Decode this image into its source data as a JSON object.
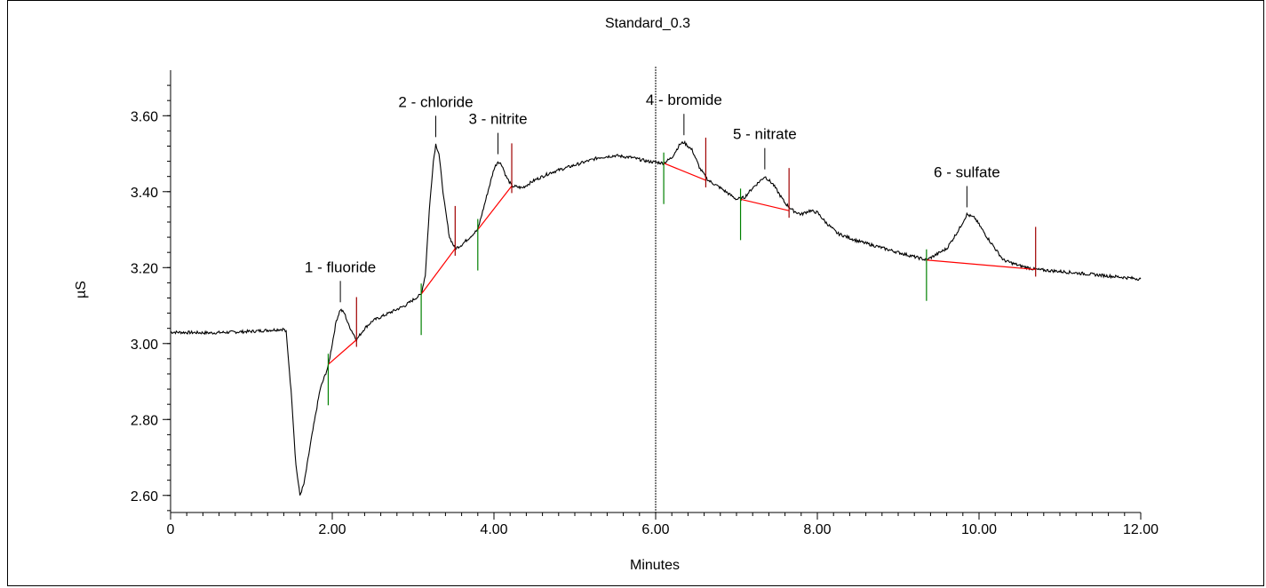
{
  "chart_data": {
    "type": "line",
    "title": "Standard_0.3",
    "xlabel": "Minutes",
    "ylabel": "µS",
    "xlim": [
      0,
      12
    ],
    "ylim": [
      2.555,
      3.72
    ],
    "x_ticks": [
      0,
      2,
      4,
      6,
      8,
      10,
      12
    ],
    "x_tick_labels": [
      "0",
      "2.00",
      "4.00",
      "6.00",
      "8.00",
      "10.00",
      "12.00"
    ],
    "y_ticks": [
      2.6,
      2.8,
      3.0,
      3.2,
      3.4,
      3.6
    ],
    "y_tick_labels": [
      "2.60",
      "2.80",
      "3.00",
      "3.20",
      "3.40",
      "3.60"
    ],
    "grid": false,
    "cursor_x": 6.0,
    "trace": [
      [
        0.0,
        3.03
      ],
      [
        0.5,
        3.028
      ],
      [
        1.0,
        3.032
      ],
      [
        1.4,
        3.038
      ],
      [
        1.43,
        3.03
      ],
      [
        1.5,
        2.85
      ],
      [
        1.55,
        2.68
      ],
      [
        1.6,
        2.6
      ],
      [
        1.65,
        2.63
      ],
      [
        1.75,
        2.76
      ],
      [
        1.85,
        2.88
      ],
      [
        1.95,
        2.94
      ],
      [
        2.05,
        3.06
      ],
      [
        2.1,
        3.09
      ],
      [
        2.15,
        3.08
      ],
      [
        2.2,
        3.05
      ],
      [
        2.3,
        3.01
      ],
      [
        2.4,
        3.04
      ],
      [
        2.5,
        3.06
      ],
      [
        2.7,
        3.08
      ],
      [
        2.9,
        3.1
      ],
      [
        3.1,
        3.13
      ],
      [
        3.15,
        3.18
      ],
      [
        3.2,
        3.35
      ],
      [
        3.25,
        3.48
      ],
      [
        3.28,
        3.525
      ],
      [
        3.32,
        3.5
      ],
      [
        3.38,
        3.38
      ],
      [
        3.45,
        3.28
      ],
      [
        3.52,
        3.25
      ],
      [
        3.6,
        3.26
      ],
      [
        3.7,
        3.28
      ],
      [
        3.8,
        3.3
      ],
      [
        3.9,
        3.38
      ],
      [
        4.0,
        3.46
      ],
      [
        4.05,
        3.48
      ],
      [
        4.1,
        3.47
      ],
      [
        4.15,
        3.44
      ],
      [
        4.22,
        3.415
      ],
      [
        4.35,
        3.41
      ],
      [
        4.5,
        3.43
      ],
      [
        4.7,
        3.45
      ],
      [
        5.0,
        3.47
      ],
      [
        5.3,
        3.49
      ],
      [
        5.5,
        3.495
      ],
      [
        5.7,
        3.49
      ],
      [
        5.9,
        3.48
      ],
      [
        6.1,
        3.475
      ],
      [
        6.2,
        3.49
      ],
      [
        6.3,
        3.525
      ],
      [
        6.35,
        3.53
      ],
      [
        6.45,
        3.51
      ],
      [
        6.55,
        3.46
      ],
      [
        6.65,
        3.43
      ],
      [
        6.8,
        3.41
      ],
      [
        7.0,
        3.38
      ],
      [
        7.1,
        3.385
      ],
      [
        7.2,
        3.41
      ],
      [
        7.35,
        3.44
      ],
      [
        7.45,
        3.42
      ],
      [
        7.6,
        3.37
      ],
      [
        7.7,
        3.35
      ],
      [
        7.8,
        3.34
      ],
      [
        7.9,
        3.35
      ],
      [
        8.0,
        3.345
      ],
      [
        8.1,
        3.32
      ],
      [
        8.25,
        3.29
      ],
      [
        8.5,
        3.27
      ],
      [
        9.0,
        3.24
      ],
      [
        9.35,
        3.22
      ],
      [
        9.6,
        3.25
      ],
      [
        9.75,
        3.3
      ],
      [
        9.85,
        3.34
      ],
      [
        9.95,
        3.33
      ],
      [
        10.1,
        3.28
      ],
      [
        10.3,
        3.22
      ],
      [
        10.5,
        3.205
      ],
      [
        10.7,
        3.195
      ],
      [
        11.0,
        3.19
      ],
      [
        11.5,
        3.18
      ],
      [
        12.0,
        3.17
      ]
    ],
    "peaks": [
      {
        "label": "1 - fluoride",
        "apex_x": 2.1,
        "apex_y": 3.09,
        "start_x": 1.95,
        "start_y": 2.945,
        "end_x": 2.3,
        "end_y": 3.01
      },
      {
        "label": "2 - chloride",
        "apex_x": 3.28,
        "apex_y": 3.525,
        "start_x": 3.1,
        "start_y": 3.13,
        "end_x": 3.52,
        "end_y": 3.25
      },
      {
        "label": "3 - nitrite",
        "apex_x": 4.05,
        "apex_y": 3.48,
        "start_x": 3.8,
        "start_y": 3.3,
        "end_x": 4.22,
        "end_y": 3.415
      },
      {
        "label": "4 - bromide",
        "apex_x": 6.35,
        "apex_y": 3.53,
        "start_x": 6.1,
        "start_y": 3.475,
        "end_x": 6.62,
        "end_y": 3.43
      },
      {
        "label": "5 - nitrate",
        "apex_x": 7.35,
        "apex_y": 3.44,
        "start_x": 7.05,
        "start_y": 3.38,
        "end_x": 7.65,
        "end_y": 3.35
      },
      {
        "label": "6 - sulfate",
        "apex_x": 9.85,
        "apex_y": 3.34,
        "start_x": 9.35,
        "start_y": 3.22,
        "end_x": 10.7,
        "end_y": 3.195
      }
    ],
    "colors": {
      "trace": "#000000",
      "baseline": "#ff0000",
      "peak_start": "#008000",
      "peak_end": "#a00000",
      "cursor": "#000000"
    }
  }
}
